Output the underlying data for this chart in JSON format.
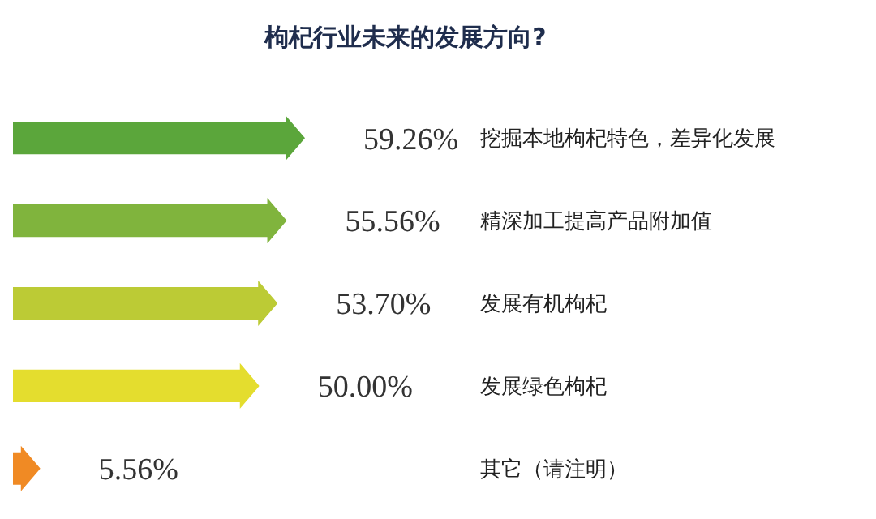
{
  "chart_data": {
    "type": "bar",
    "orientation": "horizontal",
    "title": "枸杞行业未来的发展方向?",
    "categories": [
      "挖掘本地枸杞特色，差异化发展",
      "精深加工提高产品附加值",
      "发展有机枸杞",
      "发展绿色枸杞",
      "其它（请注明）"
    ],
    "values": [
      59.26,
      55.56,
      53.7,
      50.0,
      5.56
    ],
    "colors": [
      "#5ba63b",
      "#80b43d",
      "#bccb35",
      "#e4dd2e",
      "#f08a24"
    ],
    "value_labels": [
      "59.26%",
      "55.56%",
      "53.70%",
      "50.00%",
      "5.56%"
    ]
  }
}
